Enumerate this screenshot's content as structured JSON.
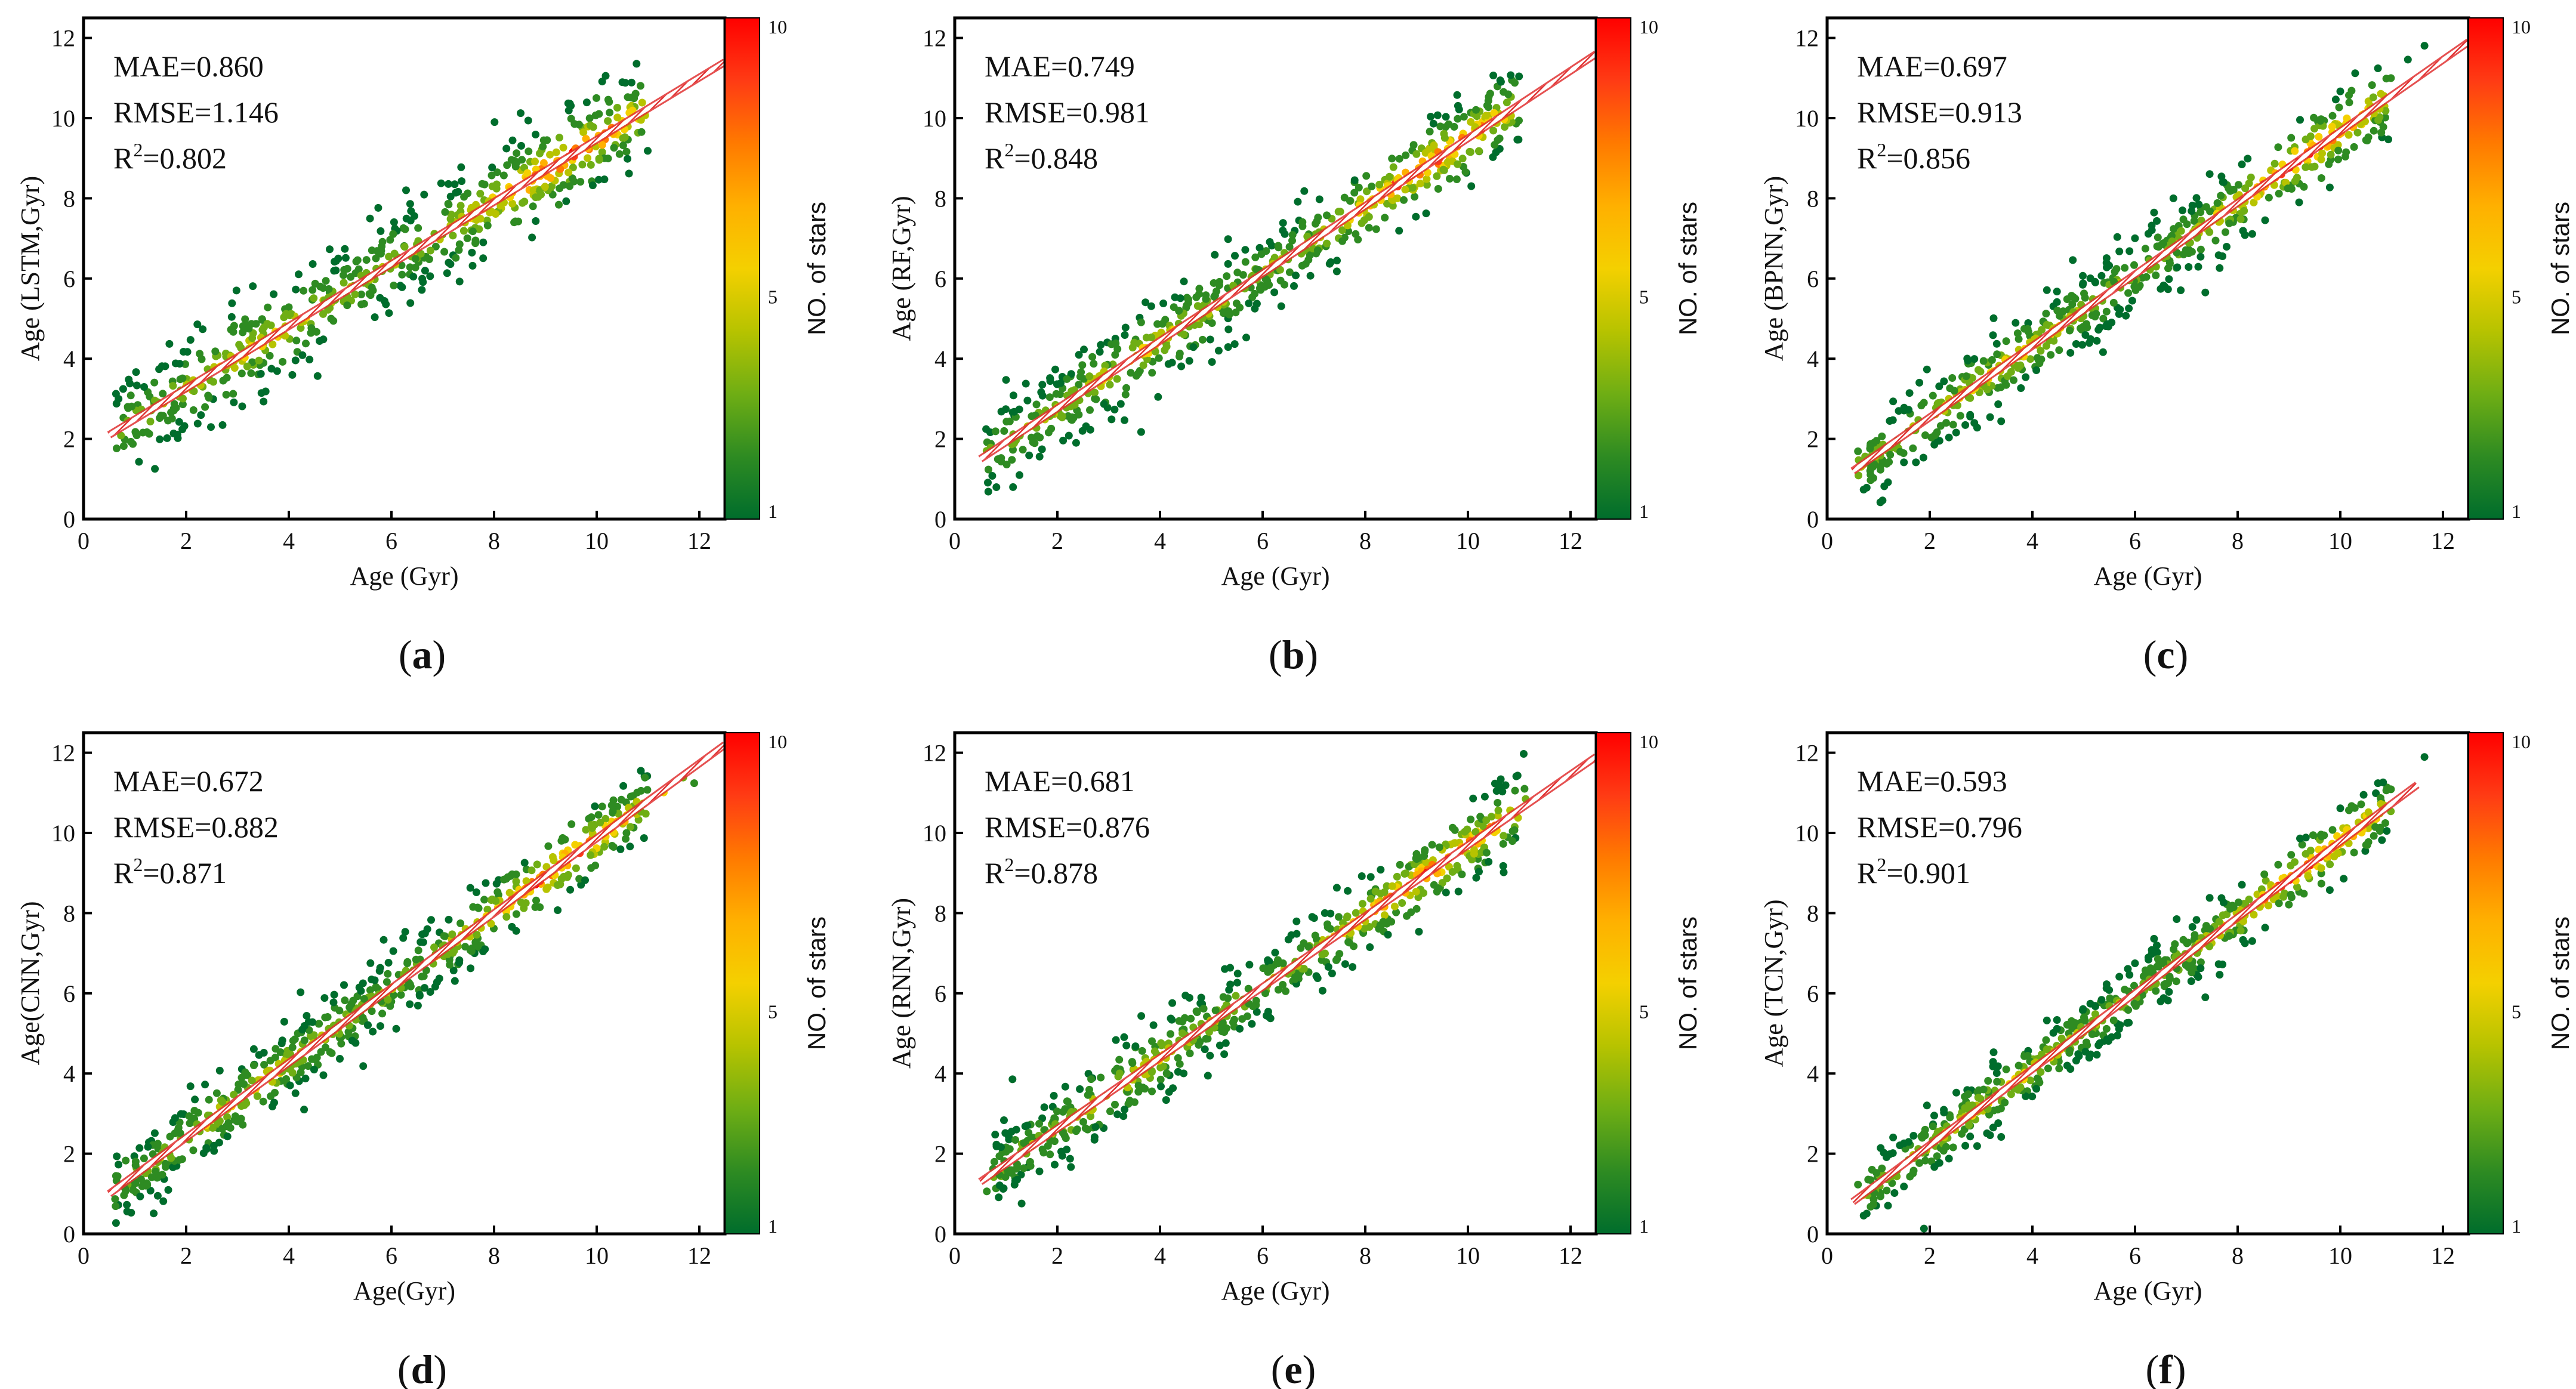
{
  "figure": {
    "colormap": [
      "#006d2c",
      "#2e8b22",
      "#6fae14",
      "#b7c300",
      "#f4d000",
      "#ffb000",
      "#ff7a00",
      "#ff3b14",
      "#ff0000"
    ],
    "fit_line_color": "#e03131"
  },
  "chart_data": [
    {
      "type": "scatter",
      "panel_label": "(a)",
      "stats": {
        "mae": "MAE=0.860",
        "rmse": "RMSE=1.146",
        "r2_prefix": "R",
        "r2_sup": "2",
        "r2_value": "=0.802"
      },
      "xlabel": "Age (Gyr)",
      "ylabel": "Age (LSTM,Gyr)",
      "xlim": [
        0,
        12.5
      ],
      "ylim": [
        0,
        12.5
      ],
      "xticks": [
        "0",
        "2",
        "4",
        "6",
        "8",
        "10",
        "12"
      ],
      "yticks": [
        "0",
        "2",
        "4",
        "6",
        "8",
        "10",
        "12"
      ],
      "fit_line": {
        "x": [
          0.5,
          12.5
        ],
        "y": [
          2.1,
          11.4
        ]
      },
      "colorbar": {
        "label": "NO. of stars",
        "min": 1,
        "max": 10,
        "ticks": [
          "1",
          "5",
          "10"
        ]
      },
      "scatter_spread": 1.1,
      "n_points": 620
    },
    {
      "type": "scatter",
      "panel_label": "(b)",
      "stats": {
        "mae": "MAE=0.749",
        "rmse": "RMSE=0.981",
        "r2_prefix": "R",
        "r2_sup": "2",
        "r2_value": "=0.848"
      },
      "xlabel": "Age (Gyr)",
      "ylabel": "Age (RF,Gyr)",
      "xlim": [
        0,
        12.5
      ],
      "ylim": [
        0,
        12.5
      ],
      "xticks": [
        "0",
        "2",
        "4",
        "6",
        "8",
        "10",
        "12"
      ],
      "yticks": [
        "0",
        "2",
        "4",
        "6",
        "8",
        "10",
        "12"
      ],
      "fit_line": {
        "x": [
          0.5,
          12.5
        ],
        "y": [
          1.5,
          11.6
        ]
      },
      "colorbar": {
        "label": "NO. of stars",
        "min": 1,
        "max": 10,
        "ticks": [
          "1",
          "5",
          "10"
        ]
      },
      "scatter_spread": 0.95,
      "n_points": 620
    },
    {
      "type": "scatter",
      "panel_label": "(c)",
      "stats": {
        "mae": "MAE=0.697",
        "rmse": "RMSE=0.913",
        "r2_prefix": "R",
        "r2_sup": "2",
        "r2_value": "=0.856"
      },
      "xlabel": "Age (Gyr)",
      "ylabel": "Age (BPNN,Gyr)",
      "xlim": [
        0,
        12.5
      ],
      "ylim": [
        0,
        12.5
      ],
      "xticks": [
        "0",
        "2",
        "4",
        "6",
        "8",
        "10",
        "12"
      ],
      "yticks": [
        "0",
        "2",
        "4",
        "6",
        "8",
        "10",
        "12"
      ],
      "fit_line": {
        "x": [
          0.5,
          12.5
        ],
        "y": [
          1.2,
          11.9
        ]
      },
      "colorbar": {
        "label": "NO. of stars",
        "min": 1,
        "max": 10,
        "ticks": [
          "1",
          "5",
          "10"
        ]
      },
      "scatter_spread": 0.9,
      "n_points": 620
    },
    {
      "type": "scatter",
      "panel_label": "(d)",
      "stats": {
        "mae": "MAE=0.672",
        "rmse": "RMSE=0.882",
        "r2_prefix": "R",
        "r2_sup": "2",
        "r2_value": "=0.871"
      },
      "xlabel": "Age(Gyr)",
      "ylabel": "Age(CNN,Gyr)",
      "xlim": [
        0,
        12.5
      ],
      "ylim": [
        0,
        12.5
      ],
      "xticks": [
        "0",
        "2",
        "4",
        "6",
        "8",
        "10",
        "12"
      ],
      "yticks": [
        "0",
        "2",
        "4",
        "6",
        "8",
        "10",
        "12"
      ],
      "fit_line": {
        "x": [
          0.5,
          12.5
        ],
        "y": [
          1.0,
          12.2
        ]
      },
      "colorbar": {
        "label": "NO. of stars",
        "min": 1,
        "max": 10,
        "ticks": [
          "1",
          "5",
          "10"
        ]
      },
      "scatter_spread": 0.85,
      "n_points": 620
    },
    {
      "type": "scatter",
      "panel_label": "(e)",
      "stats": {
        "mae": "MAE=0.681",
        "rmse": "RMSE=0.876",
        "r2_prefix": "R",
        "r2_sup": "2",
        "r2_value": "=0.878"
      },
      "xlabel": "Age (Gyr)",
      "ylabel": "Age (RNN,Gyr)",
      "xlim": [
        0,
        12.5
      ],
      "ylim": [
        0,
        12.5
      ],
      "xticks": [
        "0",
        "2",
        "4",
        "6",
        "8",
        "10",
        "12"
      ],
      "yticks": [
        "0",
        "2",
        "4",
        "6",
        "8",
        "10",
        "12"
      ],
      "fit_line": {
        "x": [
          0.5,
          12.5
        ],
        "y": [
          1.3,
          11.9
        ]
      },
      "colorbar": {
        "label": "NO. of stars",
        "min": 1,
        "max": 10,
        "ticks": [
          "1",
          "5",
          "10"
        ]
      },
      "scatter_spread": 0.85,
      "n_points": 620
    },
    {
      "type": "scatter",
      "panel_label": "(f)",
      "stats": {
        "mae": "MAE=0.593",
        "rmse": "RMSE=0.796",
        "r2_prefix": "R",
        "r2_sup": "2",
        "r2_value": "=0.901"
      },
      "xlabel": "Age (Gyr)",
      "ylabel": "Age (TCN,Gyr)",
      "xlim": [
        0,
        12.5
      ],
      "ylim": [
        0,
        12.5
      ],
      "xticks": [
        "0",
        "2",
        "4",
        "6",
        "8",
        "10",
        "12"
      ],
      "yticks": [
        "0",
        "2",
        "4",
        "6",
        "8",
        "10",
        "12"
      ],
      "fit_line": {
        "x": [
          0.5,
          11.5
        ],
        "y": [
          0.8,
          11.2
        ]
      },
      "colorbar": {
        "label": "NO. of stars",
        "min": 1,
        "max": 10,
        "ticks": [
          "1",
          "5",
          "10"
        ]
      },
      "scatter_spread": 0.75,
      "n_points": 620
    }
  ]
}
